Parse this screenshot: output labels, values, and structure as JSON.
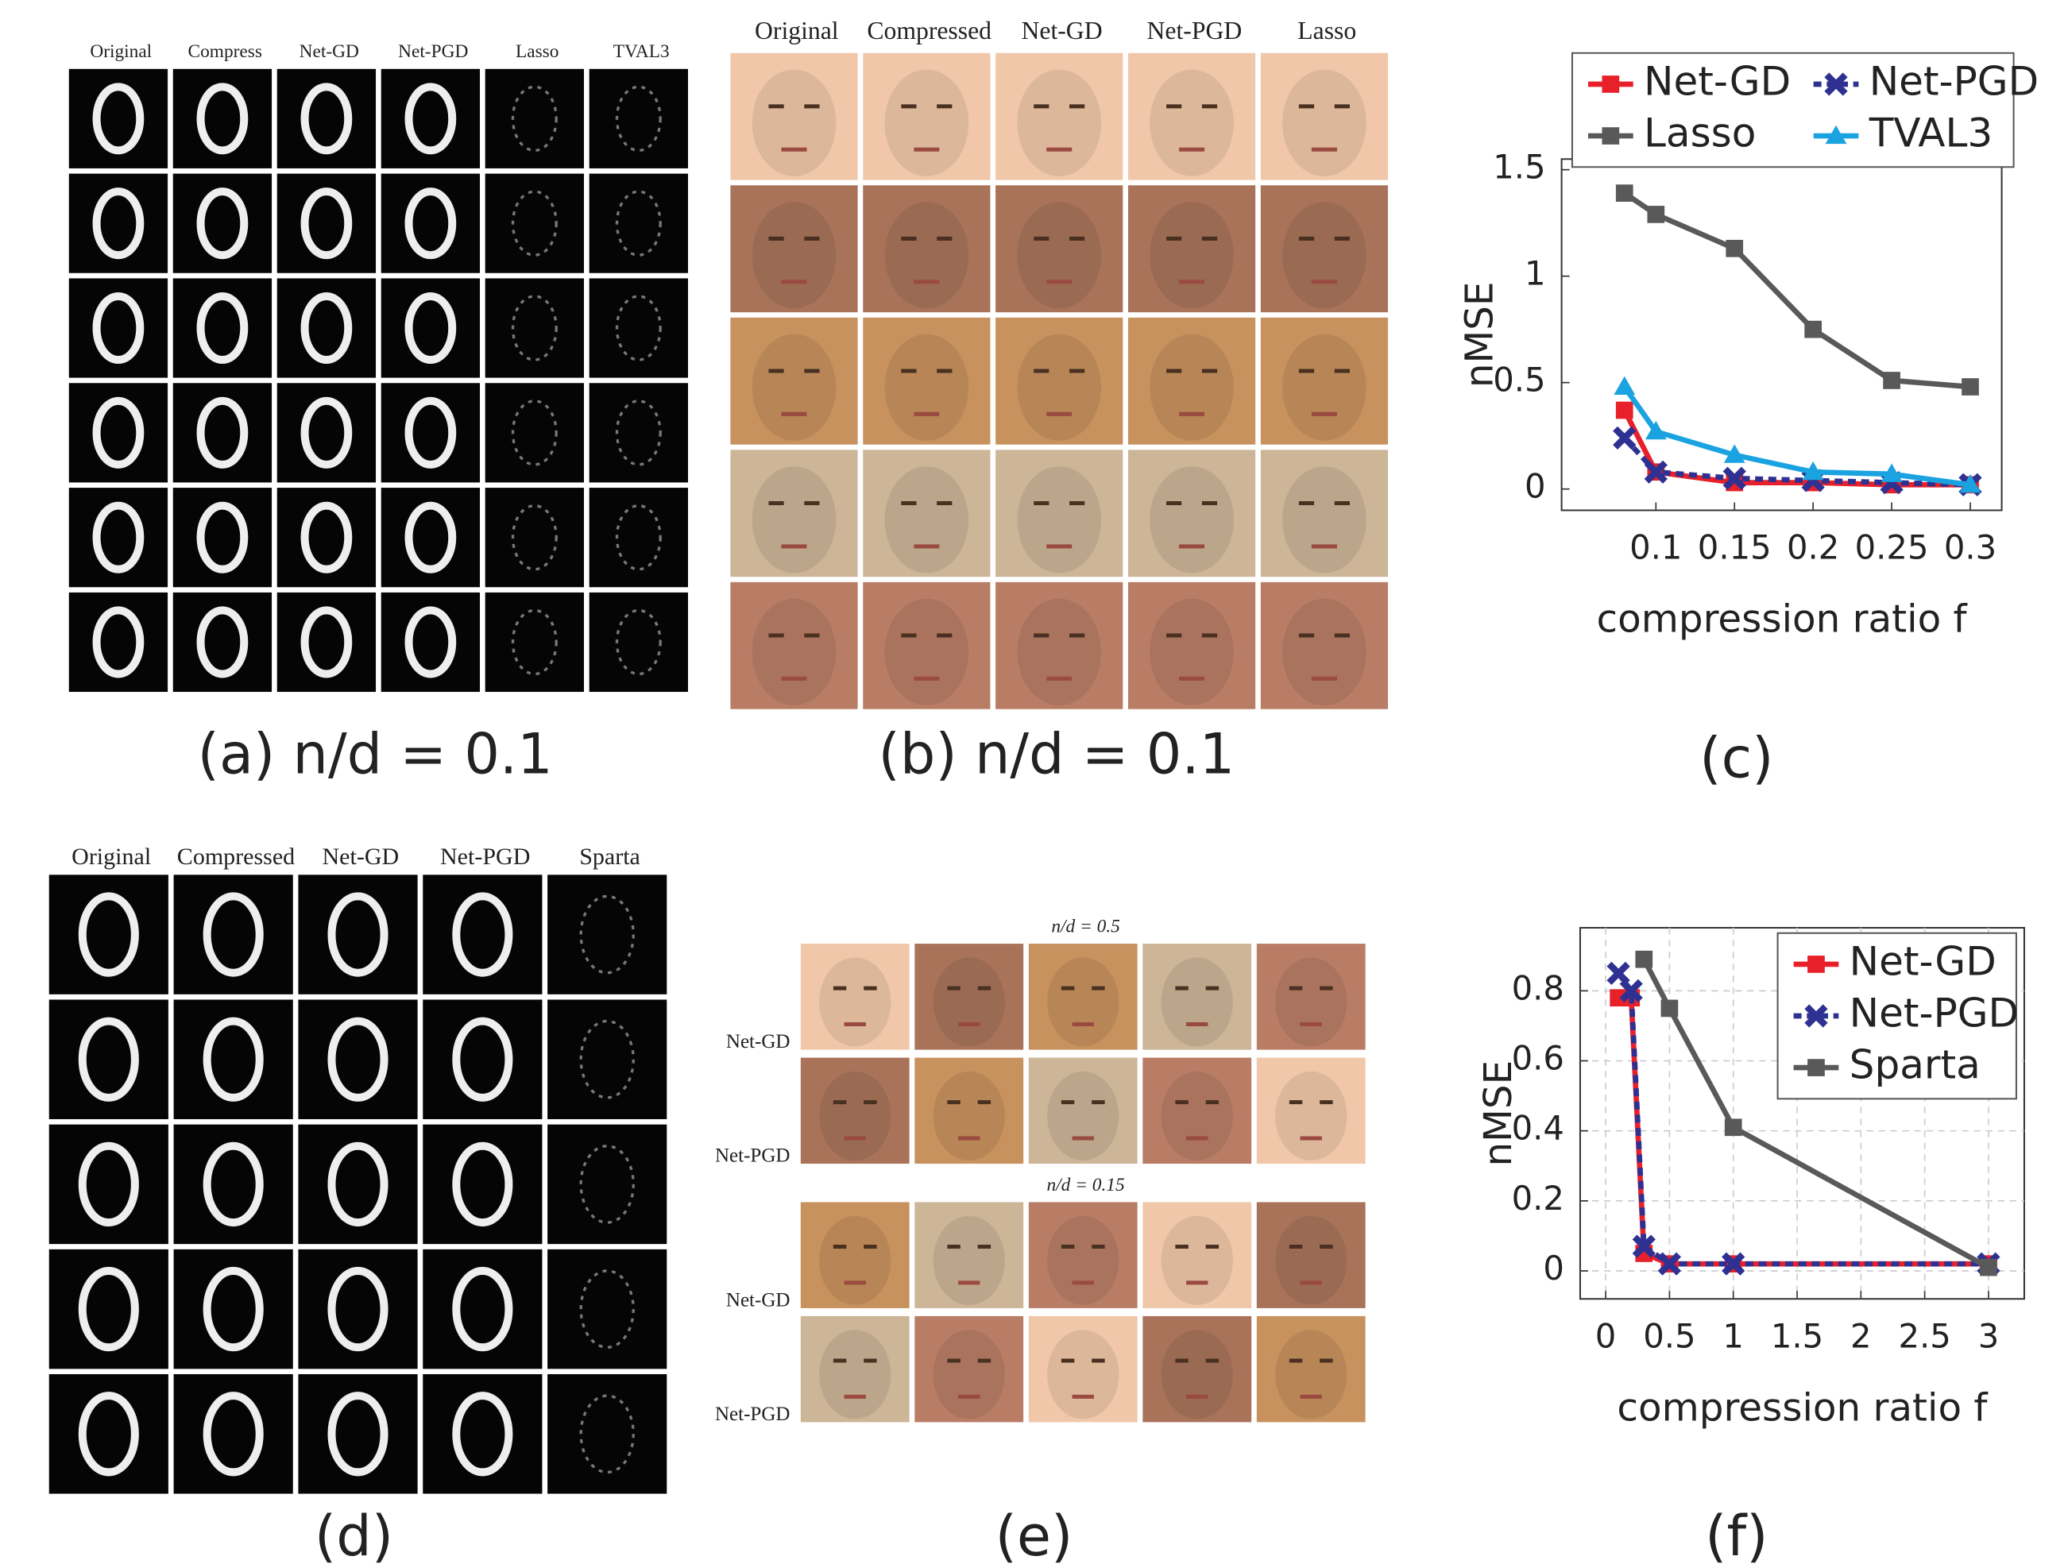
{
  "panels": {
    "a": {
      "headers": [
        "Original",
        "Compress",
        "Net-GD",
        "Net-PGD",
        "Lasso",
        "TVAL3"
      ],
      "caption": "(a) n/d = 0.1"
    },
    "b": {
      "headers": [
        "Original",
        "Compressed",
        "Net-GD",
        "Net-PGD",
        "Lasso"
      ],
      "caption": "(b) n/d = 0.1"
    },
    "d": {
      "headers": [
        "Original",
        "Compressed",
        "Net-GD",
        "Net-PGD",
        "Sparta"
      ],
      "caption": "(d)"
    },
    "e": {
      "groups": [
        "n/d = 0.5",
        "n/d = 0.15"
      ],
      "row_labels": [
        "Net-GD",
        "Net-PGD"
      ],
      "caption": "(e)"
    }
  },
  "chart_data": [
    {
      "type": "line",
      "caption": "(c)",
      "xlabel": "compression ratio f",
      "ylabel": "nMSE",
      "xlim": [
        0.04,
        0.32
      ],
      "ylim": [
        -0.1,
        1.55
      ],
      "xticks": [
        0.1,
        0.15,
        0.2,
        0.25,
        0.3
      ],
      "yticks": [
        0,
        0.5,
        1,
        1.5
      ],
      "grid": false,
      "legend": "above",
      "series": [
        {
          "name": "Net-GD",
          "color": "#e8202a",
          "marker": "square",
          "linestyle": "solid",
          "x": [
            0.08,
            0.1,
            0.15,
            0.2,
            0.25,
            0.3
          ],
          "values": [
            0.37,
            0.08,
            0.03,
            0.03,
            0.02,
            0.02
          ]
        },
        {
          "name": "Net-PGD",
          "color": "#2e3192",
          "marker": "cross",
          "linestyle": "dashed",
          "x": [
            0.08,
            0.1,
            0.15,
            0.2,
            0.25,
            0.3
          ],
          "values": [
            0.24,
            0.08,
            0.05,
            0.04,
            0.03,
            0.02
          ]
        },
        {
          "name": "Lasso",
          "color": "#595959",
          "marker": "square",
          "linestyle": "solid",
          "x": [
            0.08,
            0.1,
            0.15,
            0.2,
            0.25,
            0.3
          ],
          "values": [
            1.39,
            1.29,
            1.13,
            0.75,
            0.51,
            0.48
          ]
        },
        {
          "name": "TVAL3",
          "color": "#1aa3e0",
          "marker": "triangle",
          "linestyle": "solid",
          "x": [
            0.08,
            0.1,
            0.15,
            0.2,
            0.25,
            0.3
          ],
          "values": [
            0.48,
            0.27,
            0.16,
            0.08,
            0.07,
            0.02
          ]
        }
      ]
    },
    {
      "type": "line",
      "caption": "(f)",
      "xlabel": "compression ratio f",
      "ylabel": "nMSE",
      "xlim": [
        -0.2,
        3.28
      ],
      "ylim": [
        -0.08,
        0.98
      ],
      "xticks": [
        0,
        0.5,
        1,
        1.5,
        2,
        2.5,
        3
      ],
      "yticks": [
        0,
        0.2,
        0.4,
        0.6,
        0.8
      ],
      "grid": true,
      "legend": "upper right",
      "series": [
        {
          "name": "Net-GD",
          "color": "#e8202a",
          "marker": "square",
          "linestyle": "solid",
          "x": [
            0.1,
            0.2,
            0.3,
            0.5,
            1,
            3
          ],
          "values": [
            0.78,
            0.78,
            0.05,
            0.02,
            0.02,
            0.02
          ]
        },
        {
          "name": "Net-PGD",
          "color": "#2e3192",
          "marker": "cross",
          "linestyle": "dashed",
          "x": [
            0.1,
            0.2,
            0.3,
            0.5,
            1,
            3
          ],
          "values": [
            0.85,
            0.8,
            0.07,
            0.02,
            0.02,
            0.02
          ]
        },
        {
          "name": "Sparta",
          "color": "#595959",
          "marker": "square",
          "linestyle": "solid",
          "x": [
            0.3,
            0.5,
            1,
            3
          ],
          "values": [
            0.89,
            0.75,
            0.41,
            0.01
          ]
        }
      ]
    }
  ]
}
